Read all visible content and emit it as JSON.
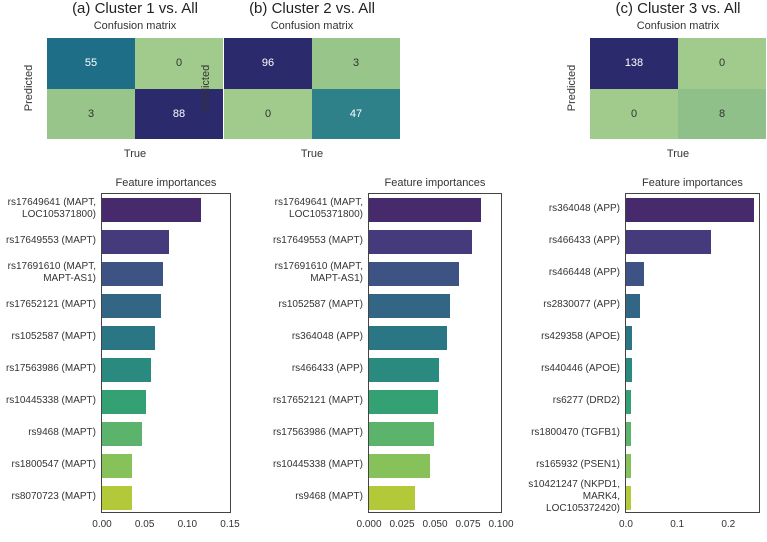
{
  "chart_data": [
    {
      "panel_title": "(a) Cluster 1 vs. All",
      "confusion": {
        "title": "Confusion matrix",
        "xlabel": "True",
        "ylabel": "Predicted",
        "values": [
          [
            55,
            0
          ],
          [
            3,
            88
          ]
        ],
        "colors": [
          [
            "#1f6e88",
            "#a0cb8c"
          ],
          [
            "#98c68a",
            "#2a2a6c"
          ]
        ]
      },
      "importance": {
        "type": "bar",
        "title": "Feature importances",
        "categories": [
          "rs17649641 (MAPT,\nLOC105371800)",
          "rs17649553 (MAPT)",
          "rs17691610 (MAPT,\nMAPT-AS1)",
          "rs17652121 (MAPT)",
          "rs1052587 (MAPT)",
          "rs17563986 (MAPT)",
          "rs10445338 (MAPT)",
          "rs9468 (MAPT)",
          "rs1800547 (MAPT)",
          "rs8070723 (MAPT)"
        ],
        "values": [
          0.116,
          0.078,
          0.071,
          0.069,
          0.062,
          0.057,
          0.052,
          0.047,
          0.035,
          0.035
        ],
        "xlim": [
          0,
          0.15
        ],
        "ticks": [
          "0.00",
          "0.05",
          "0.10",
          "0.15"
        ],
        "tick_values": [
          0,
          0.05,
          0.1,
          0.15
        ]
      }
    },
    {
      "panel_title": "(b) Cluster 2 vs. All",
      "confusion": {
        "title": "Confusion matrix",
        "xlabel": "True",
        "ylabel": "Predicted",
        "values": [
          [
            96,
            3
          ],
          [
            0,
            47
          ]
        ],
        "colors": [
          [
            "#2a2a6c",
            "#98c68a"
          ],
          [
            "#a0cb8c",
            "#2e8189"
          ]
        ]
      },
      "importance": {
        "type": "bar",
        "title": "Feature importances",
        "categories": [
          "rs17649641 (MAPT,\nLOC105371800)",
          "rs17649553 (MAPT)",
          "rs17691610 (MAPT,\nMAPT-AS1)",
          "rs1052587 (MAPT)",
          "rs364048 (APP)",
          "rs466433 (APP)",
          "rs17652121 (MAPT)",
          "rs17563986 (MAPT)",
          "rs10445338 (MAPT)",
          "rs9468 (MAPT)"
        ],
        "values": [
          0.085,
          0.078,
          0.068,
          0.061,
          0.059,
          0.053,
          0.052,
          0.049,
          0.046,
          0.035
        ],
        "xlim": [
          0,
          0.1
        ],
        "ticks": [
          "0.000",
          "0.025",
          "0.050",
          "0.075",
          "0.100"
        ],
        "tick_values": [
          0,
          0.025,
          0.05,
          0.075,
          0.1
        ]
      }
    },
    {
      "panel_title": "(c) Cluster 3 vs. All",
      "confusion": {
        "title": "Confusion matrix",
        "xlabel": "True",
        "ylabel": "Predicted",
        "values": [
          [
            138,
            0
          ],
          [
            0,
            8
          ]
        ],
        "colors": [
          [
            "#2a2a6c",
            "#a0cb8c"
          ],
          [
            "#a0cb8c",
            "#8fc08a"
          ]
        ]
      },
      "importance": {
        "type": "bar",
        "title": "Feature importances",
        "categories": [
          "rs364048 (APP)",
          "rs466433 (APP)",
          "rs466448 (APP)",
          "rs2830077 (APP)",
          "rs429358 (APOE)",
          "rs440446 (APOE)",
          "rs6277 (DRD2)",
          "rs1800470 (TGFB1)",
          "rs165932 (PSEN1)",
          "s10421247 (NKPD1,\nMARK4,\nLOC105372420)"
        ],
        "values": [
          0.25,
          0.166,
          0.036,
          0.027,
          0.011,
          0.011,
          0.01,
          0.009,
          0.009,
          0.009
        ],
        "xlim": [
          0,
          0.26
        ],
        "ticks": [
          "0.0",
          "0.1",
          "0.2"
        ],
        "tick_values": [
          0,
          0.1,
          0.2
        ]
      }
    }
  ],
  "bar_colors": [
    "#472a6b",
    "#453b7c",
    "#3c5383",
    "#336585",
    "#2b7684",
    "#2a8a80",
    "#34a175",
    "#5cb36c",
    "#87c15a",
    "#b3c93a"
  ]
}
